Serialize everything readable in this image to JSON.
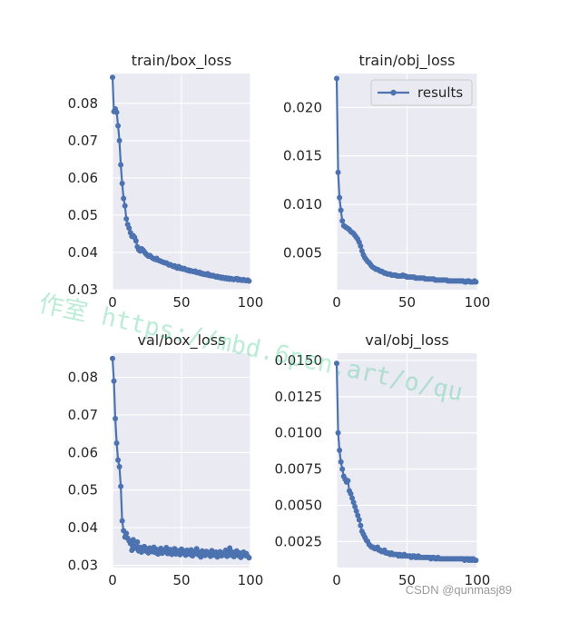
{
  "watermark": "作室 https://mbd.6pen.art/o/qu",
  "credit": "CSDN @qunmasj89",
  "colors": {
    "line": "#4c72b0",
    "panel_bg": "#eaeaf2",
    "grid": "#ffffff",
    "text": "#262626"
  },
  "chart_data": [
    {
      "type": "line",
      "title": "train/box_loss",
      "xlim": [
        0,
        100
      ],
      "ylim": [
        0.03,
        0.088
      ],
      "xticks": [
        0,
        50,
        100
      ],
      "yticks": [
        0.03,
        0.04,
        0.05,
        0.06,
        0.07,
        0.08
      ],
      "ytick_labels": [
        "0.03",
        "0.04",
        "0.05",
        "0.06",
        "0.07",
        "0.08"
      ],
      "grid": true,
      "series": [
        {
          "x": [
            0,
            1,
            2,
            3,
            4,
            5,
            6,
            7,
            8,
            9,
            10,
            11,
            12,
            13,
            14,
            15,
            16,
            17,
            18,
            19,
            20,
            21,
            22,
            23,
            24,
            25,
            26,
            27,
            28,
            29,
            30,
            31,
            32,
            33,
            34,
            35,
            36,
            37,
            38,
            39,
            40,
            41,
            42,
            43,
            44,
            45,
            46,
            47,
            48,
            49,
            50,
            51,
            52,
            53,
            54,
            55,
            56,
            57,
            58,
            59,
            60,
            61,
            62,
            63,
            64,
            65,
            66,
            67,
            68,
            69,
            70,
            71,
            72,
            73,
            74,
            75,
            76,
            77,
            78,
            79,
            80,
            81,
            82,
            83,
            84,
            85,
            86,
            87,
            88,
            89,
            90,
            91,
            92,
            93,
            94,
            95,
            96,
            97,
            98,
            99
          ],
          "y": [
            0.087,
            0.0778,
            0.0785,
            0.0776,
            0.074,
            0.07,
            0.0635,
            0.0585,
            0.0545,
            0.0525,
            0.049,
            0.0475,
            0.0465,
            0.0453,
            0.0443,
            0.0445,
            0.044,
            0.0431,
            0.0415,
            0.0407,
            0.0404,
            0.041,
            0.0407,
            0.0402,
            0.0397,
            0.0393,
            0.039,
            0.0392,
            0.0388,
            0.0385,
            0.0383,
            0.0381,
            0.0384,
            0.0379,
            0.0378,
            0.0376,
            0.0375,
            0.0373,
            0.0372,
            0.0372,
            0.0369,
            0.0366,
            0.0367,
            0.0365,
            0.0362,
            0.0364,
            0.036,
            0.0358,
            0.0362,
            0.0357,
            0.0358,
            0.0355,
            0.0357,
            0.0354,
            0.0352,
            0.0353,
            0.035,
            0.0351,
            0.0349,
            0.0348,
            0.035,
            0.0346,
            0.0345,
            0.0347,
            0.0343,
            0.0344,
            0.0341,
            0.0342,
            0.034,
            0.0343,
            0.0338,
            0.0339,
            0.0337,
            0.0338,
            0.0336,
            0.0334,
            0.0336,
            0.0333,
            0.0334,
            0.0331,
            0.0333,
            0.033,
            0.0332,
            0.0329,
            0.0331,
            0.0328,
            0.033,
            0.0328,
            0.0327,
            0.0329,
            0.033,
            0.0326,
            0.0328,
            0.0326,
            0.0325,
            0.0327,
            0.0325,
            0.0324,
            0.0326,
            0.0323
          ]
        }
      ]
    },
    {
      "type": "line",
      "title": "train/obj_loss",
      "xlim": [
        0,
        100
      ],
      "ylim": [
        0.0012,
        0.0235
      ],
      "xticks": [
        0,
        50,
        100
      ],
      "yticks": [
        0.005,
        0.01,
        0.015,
        0.02
      ],
      "ytick_labels": [
        "0.005",
        "0.010",
        "0.015",
        "0.020"
      ],
      "grid": true,
      "legend": {
        "label": "results",
        "placement": "top-right"
      },
      "series": [
        {
          "name": "results",
          "x": [
            0,
            1,
            2,
            3,
            4,
            5,
            6,
            7,
            8,
            9,
            10,
            11,
            12,
            13,
            14,
            15,
            16,
            17,
            18,
            19,
            20,
            21,
            22,
            23,
            24,
            25,
            26,
            27,
            28,
            29,
            30,
            31,
            32,
            33,
            34,
            35,
            36,
            37,
            38,
            39,
            40,
            41,
            42,
            43,
            44,
            45,
            46,
            47,
            48,
            49,
            50,
            51,
            52,
            53,
            54,
            55,
            56,
            57,
            58,
            59,
            60,
            61,
            62,
            63,
            64,
            65,
            66,
            67,
            68,
            69,
            70,
            71,
            72,
            73,
            74,
            75,
            76,
            77,
            78,
            79,
            80,
            81,
            82,
            83,
            84,
            85,
            86,
            87,
            88,
            89,
            90,
            91,
            92,
            93,
            94,
            95,
            96,
            97,
            98,
            99
          ],
          "y": [
            0.023,
            0.0133,
            0.0107,
            0.0094,
            0.0083,
            0.0078,
            0.0077,
            0.0076,
            0.0075,
            0.0074,
            0.0072,
            0.0071,
            0.007,
            0.0068,
            0.0066,
            0.0064,
            0.0061,
            0.0057,
            0.0052,
            0.0048,
            0.0045,
            0.0043,
            0.0041,
            0.004,
            0.0038,
            0.0036,
            0.0035,
            0.0034,
            0.0033,
            0.0033,
            0.0032,
            0.0031,
            0.0031,
            0.003,
            0.0029,
            0.0029,
            0.0028,
            0.0028,
            0.0028,
            0.0027,
            0.0027,
            0.0027,
            0.0027,
            0.0026,
            0.0026,
            0.0026,
            0.0026,
            0.0027,
            0.0026,
            0.0026,
            0.0025,
            0.0025,
            0.0025,
            0.0025,
            0.0025,
            0.0025,
            0.0024,
            0.0024,
            0.0024,
            0.0024,
            0.0024,
            0.0024,
            0.0024,
            0.0023,
            0.0023,
            0.0023,
            0.0023,
            0.0023,
            0.0023,
            0.0023,
            0.0022,
            0.0022,
            0.0022,
            0.0022,
            0.0022,
            0.0022,
            0.0022,
            0.0022,
            0.0022,
            0.0021,
            0.0021,
            0.0021,
            0.0021,
            0.0021,
            0.0021,
            0.0021,
            0.0021,
            0.0021,
            0.0021,
            0.0021,
            0.0021,
            0.002,
            0.002,
            0.0021,
            0.0021,
            0.002,
            0.002,
            0.002,
            0.0021,
            0.002
          ]
        }
      ]
    },
    {
      "type": "line",
      "title": "val/box_loss",
      "xlim": [
        0,
        100
      ],
      "ylim": [
        0.0294,
        0.0864
      ],
      "xticks": [
        0,
        50,
        100
      ],
      "yticks": [
        0.03,
        0.04,
        0.05,
        0.06,
        0.07,
        0.08
      ],
      "ytick_labels": [
        "0.03",
        "0.04",
        "0.05",
        "0.06",
        "0.07",
        "0.08"
      ],
      "grid": true,
      "series": [
        {
          "x": [
            0,
            1,
            2,
            3,
            4,
            5,
            6,
            7,
            8,
            9,
            10,
            11,
            12,
            13,
            14,
            15,
            16,
            17,
            18,
            19,
            20,
            21,
            22,
            23,
            24,
            25,
            26,
            27,
            28,
            29,
            30,
            31,
            32,
            33,
            34,
            35,
            36,
            37,
            38,
            39,
            40,
            41,
            42,
            43,
            44,
            45,
            46,
            47,
            48,
            49,
            50,
            51,
            52,
            53,
            54,
            55,
            56,
            57,
            58,
            59,
            60,
            61,
            62,
            63,
            64,
            65,
            66,
            67,
            68,
            69,
            70,
            71,
            72,
            73,
            74,
            75,
            76,
            77,
            78,
            79,
            80,
            81,
            82,
            83,
            84,
            85,
            86,
            87,
            88,
            89,
            90,
            91,
            92,
            93,
            94,
            95,
            96,
            97,
            98,
            99
          ],
          "y": [
            0.085,
            0.079,
            0.069,
            0.0625,
            0.058,
            0.0562,
            0.051,
            0.0418,
            0.0392,
            0.0375,
            0.0385,
            0.0372,
            0.0365,
            0.0358,
            0.034,
            0.0368,
            0.035,
            0.0345,
            0.0362,
            0.0338,
            0.0348,
            0.0335,
            0.0342,
            0.035,
            0.0338,
            0.0344,
            0.0333,
            0.0346,
            0.034,
            0.0336,
            0.0348,
            0.0334,
            0.0342,
            0.033,
            0.0338,
            0.0345,
            0.0332,
            0.034,
            0.0336,
            0.0347,
            0.0331,
            0.0338,
            0.0342,
            0.0329,
            0.0337,
            0.0344,
            0.033,
            0.0339,
            0.0335,
            0.0328,
            0.0343,
            0.0333,
            0.0338,
            0.0327,
            0.034,
            0.0334,
            0.0329,
            0.0341,
            0.0325,
            0.0336,
            0.0331,
            0.0344,
            0.0328,
            0.0335,
            0.0322,
            0.0338,
            0.033,
            0.0326,
            0.0337,
            0.0329,
            0.0334,
            0.0324,
            0.0339,
            0.0331,
            0.0327,
            0.0335,
            0.0322,
            0.033,
            0.0336,
            0.0325,
            0.0332,
            0.0328,
            0.034,
            0.0324,
            0.0331,
            0.0346,
            0.0327,
            0.0335,
            0.0323,
            0.033,
            0.0338,
            0.0326,
            0.0333,
            0.0321,
            0.0329,
            0.0335,
            0.0326,
            0.0331,
            0.0324,
            0.032
          ]
        }
      ]
    },
    {
      "type": "line",
      "title": "val/obj_loss",
      "xlim": [
        0,
        100
      ],
      "ylim": [
        0.0007,
        0.0155
      ],
      "xticks": [
        0,
        50,
        100
      ],
      "yticks": [
        0.0025,
        0.005,
        0.0075,
        0.01,
        0.0125,
        0.015
      ],
      "ytick_labels": [
        "0.0025",
        "0.0050",
        "0.0075",
        "0.0100",
        "0.0125",
        "0.0150"
      ],
      "grid": true,
      "series": [
        {
          "x": [
            0,
            1,
            2,
            3,
            4,
            5,
            6,
            7,
            8,
            9,
            10,
            11,
            12,
            13,
            14,
            15,
            16,
            17,
            18,
            19,
            20,
            21,
            22,
            23,
            24,
            25,
            26,
            27,
            28,
            29,
            30,
            31,
            32,
            33,
            34,
            35,
            36,
            37,
            38,
            39,
            40,
            41,
            42,
            43,
            44,
            45,
            46,
            47,
            48,
            49,
            50,
            51,
            52,
            53,
            54,
            55,
            56,
            57,
            58,
            59,
            60,
            61,
            62,
            63,
            64,
            65,
            66,
            67,
            68,
            69,
            70,
            71,
            72,
            73,
            74,
            75,
            76,
            77,
            78,
            79,
            80,
            81,
            82,
            83,
            84,
            85,
            86,
            87,
            88,
            89,
            90,
            91,
            92,
            93,
            94,
            95,
            96,
            97,
            98,
            99
          ],
          "y": [
            0.0148,
            0.01,
            0.0088,
            0.008,
            0.0075,
            0.007,
            0.0068,
            0.0066,
            0.0067,
            0.006,
            0.0058,
            0.0055,
            0.0052,
            0.0049,
            0.0046,
            0.0043,
            0.004,
            0.0036,
            0.0032,
            0.003,
            0.0028,
            0.0026,
            0.0025,
            0.0023,
            0.0022,
            0.0021,
            0.0021,
            0.002,
            0.002,
            0.0021,
            0.0019,
            0.0019,
            0.0018,
            0.0018,
            0.0019,
            0.0017,
            0.0017,
            0.0017,
            0.0016,
            0.0017,
            0.0016,
            0.0016,
            0.0016,
            0.0016,
            0.0015,
            0.0016,
            0.0015,
            0.0015,
            0.0016,
            0.0015,
            0.0015,
            0.0015,
            0.0015,
            0.0014,
            0.0015,
            0.0015,
            0.0014,
            0.0014,
            0.0015,
            0.0014,
            0.0014,
            0.0014,
            0.0014,
            0.0014,
            0.0014,
            0.0014,
            0.0014,
            0.0013,
            0.0014,
            0.0014,
            0.0013,
            0.0013,
            0.0014,
            0.0013,
            0.0013,
            0.0013,
            0.0013,
            0.0013,
            0.0013,
            0.0013,
            0.0013,
            0.0013,
            0.0013,
            0.0013,
            0.0013,
            0.0013,
            0.0013,
            0.0013,
            0.0013,
            0.0013,
            0.0013,
            0.0012,
            0.0013,
            0.0013,
            0.0012,
            0.0013,
            0.0012,
            0.0013,
            0.0012,
            0.0012
          ]
        }
      ]
    }
  ]
}
